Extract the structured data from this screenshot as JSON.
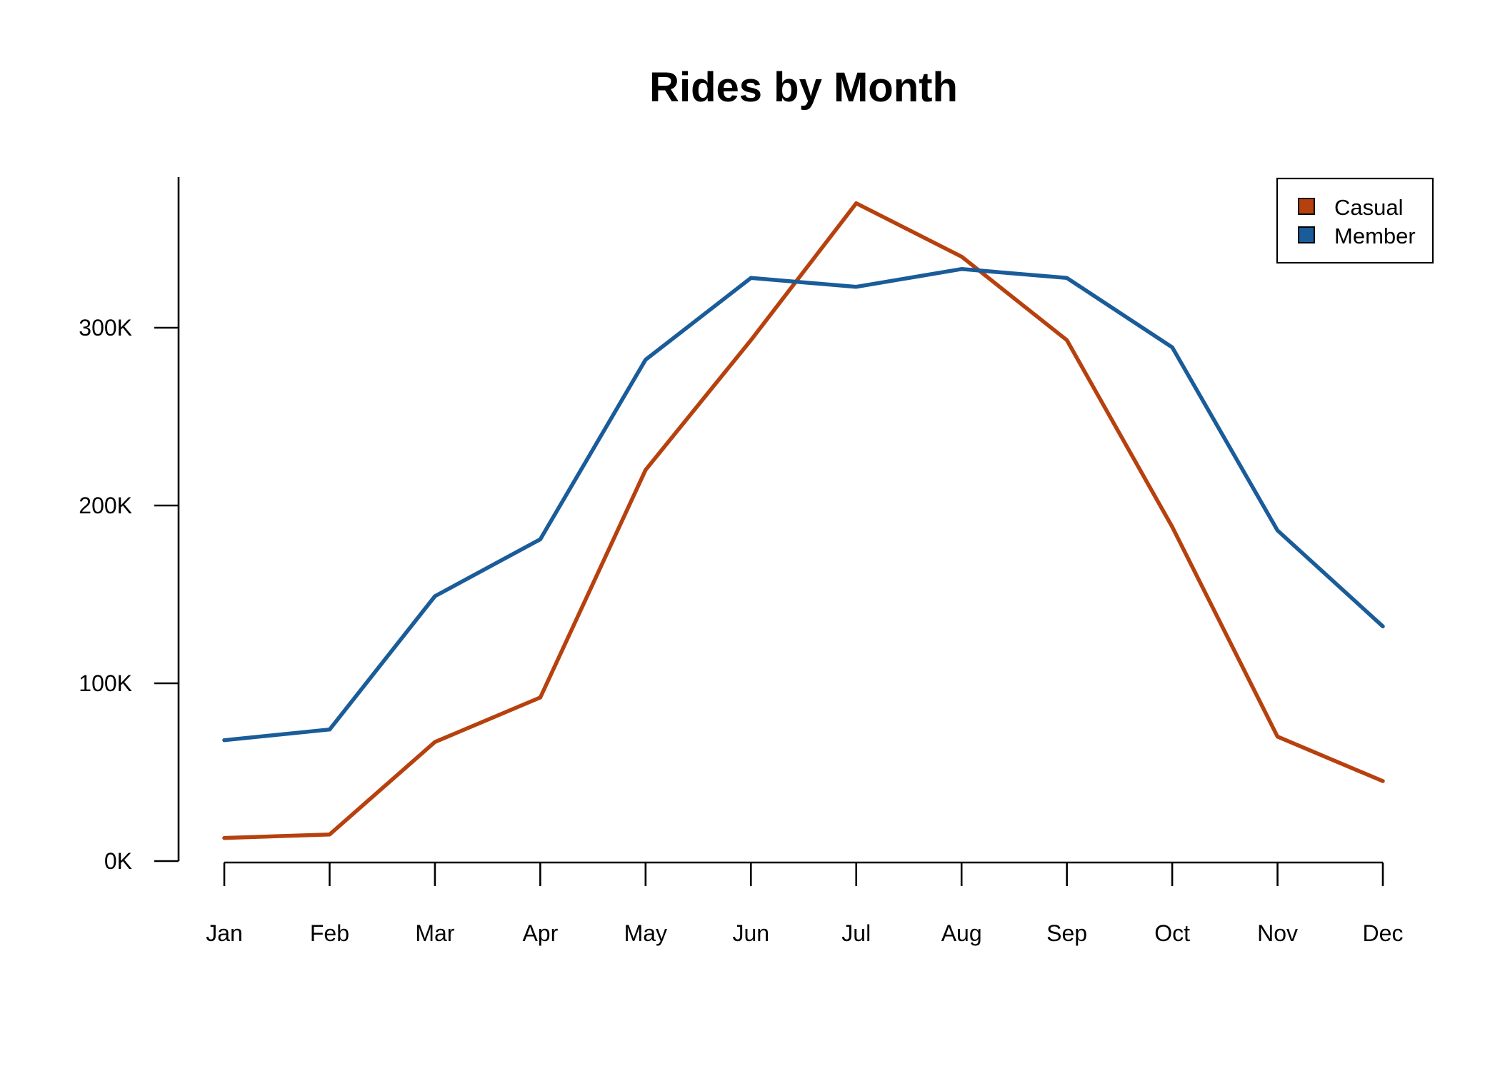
{
  "chart_data": {
    "type": "line",
    "title": "Rides by Month",
    "xlabel": "",
    "ylabel": "",
    "categories": [
      "Jan",
      "Feb",
      "Mar",
      "Apr",
      "May",
      "Jun",
      "Jul",
      "Aug",
      "Sep",
      "Oct",
      "Nov",
      "Dec"
    ],
    "y_ticks": [
      0,
      100000,
      200000,
      300000
    ],
    "y_tick_labels": [
      "0K",
      "100K",
      "200K",
      "300K"
    ],
    "ylim": [
      0,
      385000
    ],
    "grid": false,
    "legend_position": "top-right",
    "series": [
      {
        "name": "Casual",
        "color": "#B7410E",
        "values": [
          13000,
          15000,
          67000,
          92000,
          220000,
          293000,
          370000,
          340000,
          293000,
          188000,
          70000,
          45000
        ]
      },
      {
        "name": "Member",
        "color": "#1A5C99",
        "values": [
          68000,
          74000,
          149000,
          181000,
          282000,
          328000,
          323000,
          333000,
          328000,
          289000,
          186000,
          132000
        ]
      }
    ]
  }
}
